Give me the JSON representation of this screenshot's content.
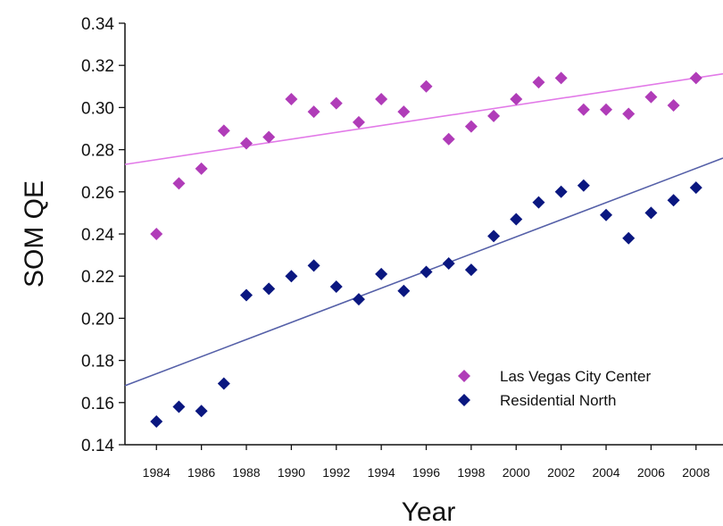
{
  "chart_data": {
    "type": "scatter",
    "title": "",
    "xlabel": "Year",
    "ylabel": "SOM QE",
    "xlim": [
      1982.6,
      2009.2
    ],
    "ylim": [
      0.14,
      0.34
    ],
    "yticks": [
      "0.14",
      "0.16",
      "0.18",
      "0.20",
      "0.22",
      "0.24",
      "0.26",
      "0.28",
      "0.30",
      "0.32",
      "0.34"
    ],
    "xticks": [
      "1984",
      "1986",
      "1988",
      "1990",
      "1992",
      "1994",
      "1996",
      "1998",
      "2000",
      "2002",
      "2004",
      "2006",
      "2008"
    ],
    "grid": false,
    "legend_position": "bottom-right",
    "series": [
      {
        "name": "Las Vegas City Center",
        "color": "#b03cb8",
        "trendline_color": "#e27ae8",
        "marker": "diamond",
        "x": [
          1984,
          1985,
          1986,
          1987,
          1988,
          1989,
          1990,
          1991,
          1992,
          1993,
          1994,
          1995,
          1996,
          1997,
          1998,
          1999,
          2000,
          2001,
          2002,
          2003,
          2004,
          2005,
          2006,
          2007,
          2008
        ],
        "y": [
          0.24,
          0.264,
          0.271,
          0.289,
          0.283,
          0.286,
          0.304,
          0.298,
          0.302,
          0.293,
          0.304,
          0.298,
          0.31,
          0.285,
          0.291,
          0.296,
          0.304,
          0.312,
          0.314,
          0.299,
          0.299,
          0.297,
          0.305,
          0.301,
          0.314
        ],
        "trendline": {
          "x": [
            1982.6,
            2009.2
          ],
          "y": [
            0.273,
            0.316
          ]
        }
      },
      {
        "name": "Residential North",
        "color": "#0a1780",
        "trendline_color": "#5560a8",
        "marker": "diamond",
        "x": [
          1984,
          1985,
          1986,
          1987,
          1988,
          1989,
          1990,
          1991,
          1992,
          1993,
          1994,
          1995,
          1996,
          1997,
          1998,
          1999,
          2000,
          2001,
          2002,
          2003,
          2004,
          2005,
          2006,
          2007,
          2008
        ],
        "y": [
          0.151,
          0.158,
          0.156,
          0.169,
          0.211,
          0.214,
          0.22,
          0.225,
          0.215,
          0.209,
          0.221,
          0.213,
          0.222,
          0.226,
          0.223,
          0.239,
          0.247,
          0.255,
          0.26,
          0.263,
          0.249,
          0.238,
          0.25,
          0.256,
          0.262
        ],
        "trendline": {
          "x": [
            1982.6,
            2009.2
          ],
          "y": [
            0.168,
            0.276
          ]
        }
      }
    ]
  }
}
